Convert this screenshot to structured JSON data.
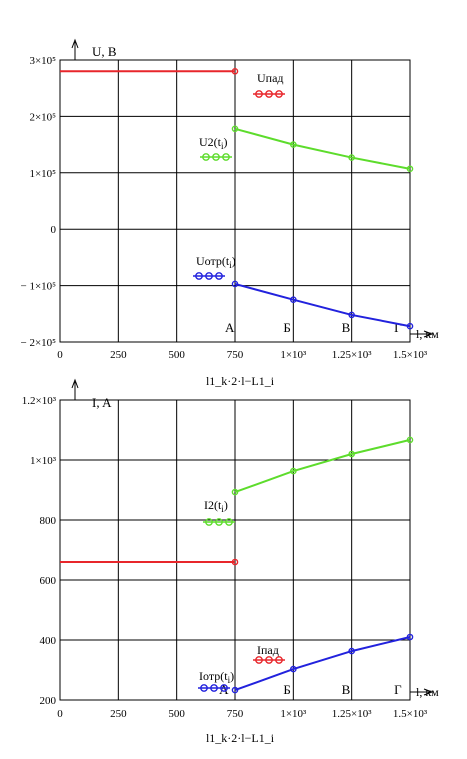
{
  "colors": {
    "frame": "#000000",
    "grid": "#000000",
    "incident": "#e8262b",
    "transmitted": "#5ddc2c",
    "reflected": "#2222dd",
    "background": "#ffffff"
  },
  "chart_data": [
    {
      "type": "line",
      "ylabel": "U, B",
      "xlabel": "l, км",
      "x_expression": "l1_k·2·l−L1_i",
      "xlim": [
        0,
        1500
      ],
      "ylim": [
        -200000,
        300000
      ],
      "grid": true,
      "x_ticks": [
        {
          "value": 0,
          "label": "0"
        },
        {
          "value": 250,
          "label": "250"
        },
        {
          "value": 500,
          "label": "500"
        },
        {
          "value": 750,
          "label": "750"
        },
        {
          "value": 1000,
          "label": "1×10³"
        },
        {
          "value": 1250,
          "label": "1.25×10³"
        },
        {
          "value": 1500,
          "label": "1.5×10³"
        }
      ],
      "y_ticks": [
        {
          "value": 300000,
          "label": "3×10⁵"
        },
        {
          "value": 200000,
          "label": "2×10⁵"
        },
        {
          "value": 100000,
          "label": "1×10⁵"
        },
        {
          "value": 0,
          "label": "0"
        },
        {
          "value": -100000,
          "label": "− 1×10⁵"
        },
        {
          "value": -200000,
          "label": "− 2×10⁵"
        }
      ],
      "points_labels": [
        {
          "x": 750,
          "label": "А"
        },
        {
          "x": 1000,
          "label": "Б"
        },
        {
          "x": 1250,
          "label": "В"
        },
        {
          "x": 1475,
          "label": "Г"
        }
      ],
      "series": [
        {
          "name": "Uпад",
          "color_key": "incident",
          "x": [
            0,
            750
          ],
          "y": [
            280000,
            280000
          ],
          "markers": [
            750
          ],
          "legend_name": "Uпад",
          "legend_sub": ""
        },
        {
          "name": "U2(ti)",
          "color_key": "transmitted",
          "x": [
            750,
            1000,
            1250,
            1500
          ],
          "y": [
            178000,
            150000,
            127000,
            107000
          ],
          "markers": [
            750,
            1000,
            1250,
            1500
          ],
          "legend_name": "U2(t",
          "legend_sub": "i",
          "legend_close": ")"
        },
        {
          "name": "Uотр(ti)",
          "color_key": "reflected",
          "x": [
            750,
            1000,
            1250,
            1500
          ],
          "y": [
            -97000,
            -125000,
            -152000,
            -172000
          ],
          "markers": [
            750,
            1000,
            1250,
            1500
          ],
          "legend_name": "Uотр(t",
          "legend_sub": "i",
          "legend_close": ")"
        }
      ]
    },
    {
      "type": "line",
      "ylabel": "I, A",
      "xlabel": "l, км",
      "x_expression": "l1_k·2·l−L1_i",
      "xlim": [
        0,
        1500
      ],
      "ylim": [
        200,
        1200
      ],
      "grid": true,
      "x_ticks": [
        {
          "value": 0,
          "label": "0"
        },
        {
          "value": 250,
          "label": "250"
        },
        {
          "value": 500,
          "label": "500"
        },
        {
          "value": 750,
          "label": "750"
        },
        {
          "value": 1000,
          "label": "1×10³"
        },
        {
          "value": 1250,
          "label": "1.25×10³"
        },
        {
          "value": 1500,
          "label": "1.5×10³"
        }
      ],
      "y_ticks": [
        {
          "value": 1200,
          "label": "1.2×10³"
        },
        {
          "value": 1000,
          "label": "1×10³"
        },
        {
          "value": 800,
          "label": "800"
        },
        {
          "value": 600,
          "label": "600"
        },
        {
          "value": 400,
          "label": "400"
        },
        {
          "value": 200,
          "label": "200"
        }
      ],
      "points_labels": [
        {
          "x": 725,
          "label": "А"
        },
        {
          "x": 1000,
          "label": "Б"
        },
        {
          "x": 1250,
          "label": "В"
        },
        {
          "x": 1475,
          "label": "Г"
        }
      ],
      "series": [
        {
          "name": "Iпад",
          "color_key": "incident",
          "x": [
            0,
            750
          ],
          "y": [
            660,
            660
          ],
          "markers": [
            750
          ],
          "legend_name": "Iпад",
          "legend_sub": ""
        },
        {
          "name": "I2(ti)",
          "color_key": "transmitted",
          "x": [
            750,
            1000,
            1250,
            1500
          ],
          "y": [
            893,
            963,
            1020,
            1067
          ],
          "markers": [
            750,
            1000,
            1250,
            1500
          ],
          "legend_name": "I2(t",
          "legend_sub": "i",
          "legend_close": ")"
        },
        {
          "name": "Iотр(ti)",
          "color_key": "reflected",
          "x": [
            750,
            1000,
            1250,
            1500
          ],
          "y": [
            233,
            303,
            363,
            410
          ],
          "markers": [
            750,
            1000,
            1250,
            1500
          ],
          "legend_name": "Iотр(t",
          "legend_sub": "i",
          "legend_close": ")"
        }
      ]
    }
  ]
}
